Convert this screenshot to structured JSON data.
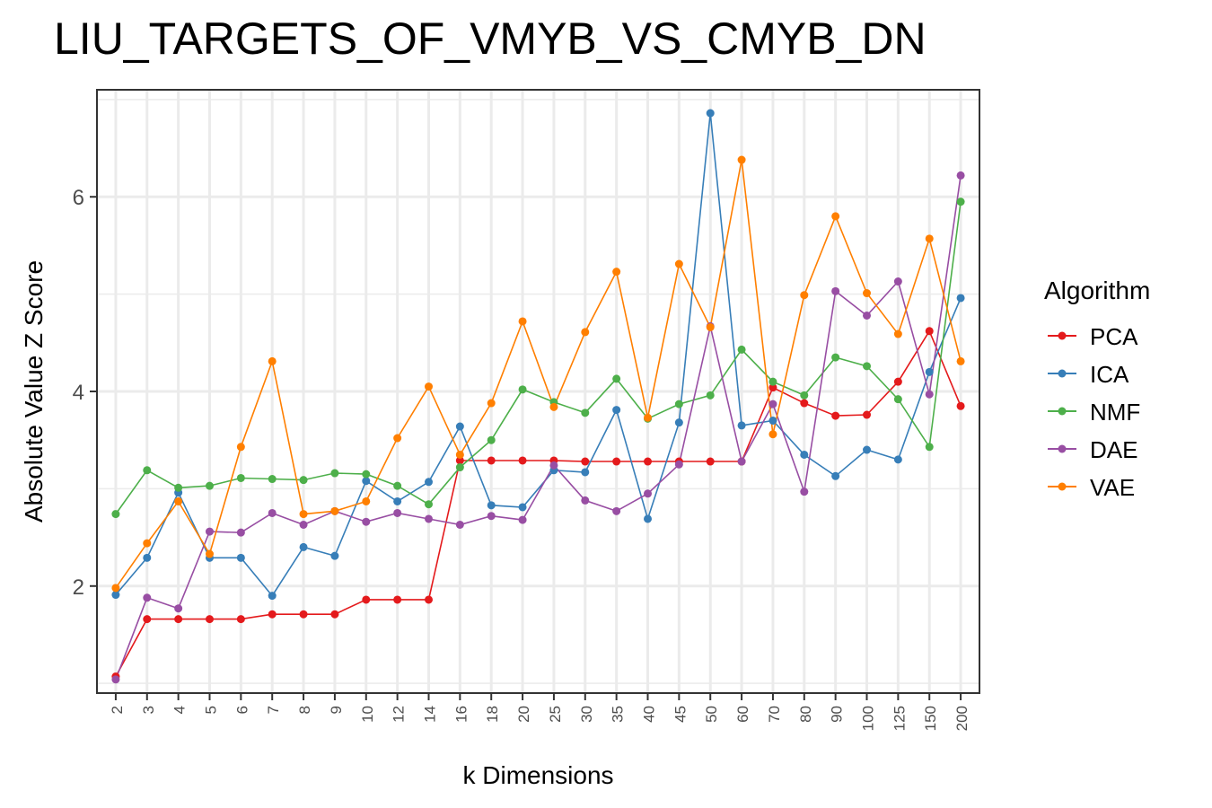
{
  "chart_data": {
    "type": "line",
    "title": "LIU_TARGETS_OF_VMYB_VS_CMYB_DN",
    "xlabel": "k Dimensions",
    "ylabel": "Absolute Value Z Score",
    "ylim": [
      0.9,
      7.1
    ],
    "yticks": [
      2,
      4,
      6
    ],
    "grid": true,
    "legend_title": "Algorithm",
    "legend_position": "right",
    "categories": [
      "2",
      "3",
      "4",
      "5",
      "6",
      "7",
      "8",
      "9",
      "10",
      "12",
      "14",
      "16",
      "18",
      "20",
      "25",
      "30",
      "35",
      "40",
      "45",
      "50",
      "60",
      "70",
      "80",
      "90",
      "100",
      "125",
      "150",
      "200"
    ],
    "series": [
      {
        "name": "PCA",
        "color": "#e41a1c",
        "values": [
          1.07,
          1.66,
          1.66,
          1.66,
          1.66,
          1.71,
          1.71,
          1.71,
          1.86,
          1.86,
          1.86,
          3.29,
          3.29,
          3.29,
          3.29,
          3.28,
          3.28,
          3.28,
          3.28,
          3.28,
          3.28,
          4.04,
          3.88,
          3.75,
          3.76,
          4.1,
          4.62,
          3.85
        ]
      },
      {
        "name": "ICA",
        "color": "#377eb8",
        "values": [
          1.91,
          2.29,
          2.96,
          2.29,
          2.29,
          1.9,
          2.4,
          2.31,
          3.08,
          2.87,
          3.07,
          3.64,
          2.83,
          2.81,
          3.19,
          3.17,
          3.81,
          2.69,
          3.68,
          6.86,
          3.65,
          3.7,
          3.35,
          3.13,
          3.4,
          3.3,
          4.2,
          4.96
        ]
      },
      {
        "name": "NMF",
        "color": "#4daf4a",
        "values": [
          2.74,
          3.19,
          3.01,
          3.03,
          3.11,
          3.1,
          3.09,
          3.16,
          3.15,
          3.03,
          2.84,
          3.22,
          3.5,
          4.02,
          3.89,
          3.78,
          4.13,
          3.72,
          3.87,
          3.96,
          4.43,
          4.1,
          3.96,
          4.35,
          4.26,
          3.92,
          3.43,
          5.95
        ]
      },
      {
        "name": "DAE",
        "color": "#984ea3",
        "values": [
          1.04,
          1.88,
          1.77,
          2.56,
          2.55,
          2.75,
          2.63,
          2.77,
          2.66,
          2.75,
          2.69,
          2.63,
          2.72,
          2.68,
          3.24,
          2.88,
          2.77,
          2.95,
          3.25,
          4.67,
          3.28,
          3.87,
          2.97,
          5.03,
          4.78,
          5.13,
          3.97,
          6.22
        ]
      },
      {
        "name": "VAE",
        "color": "#ff7f00",
        "values": [
          1.98,
          2.44,
          2.87,
          2.33,
          3.43,
          4.31,
          2.74,
          2.77,
          2.87,
          3.52,
          4.05,
          3.35,
          3.88,
          4.72,
          3.84,
          4.61,
          5.23,
          3.73,
          5.31,
          4.66,
          6.38,
          3.56,
          4.99,
          5.8,
          5.01,
          4.59,
          5.57,
          4.31
        ]
      }
    ]
  }
}
